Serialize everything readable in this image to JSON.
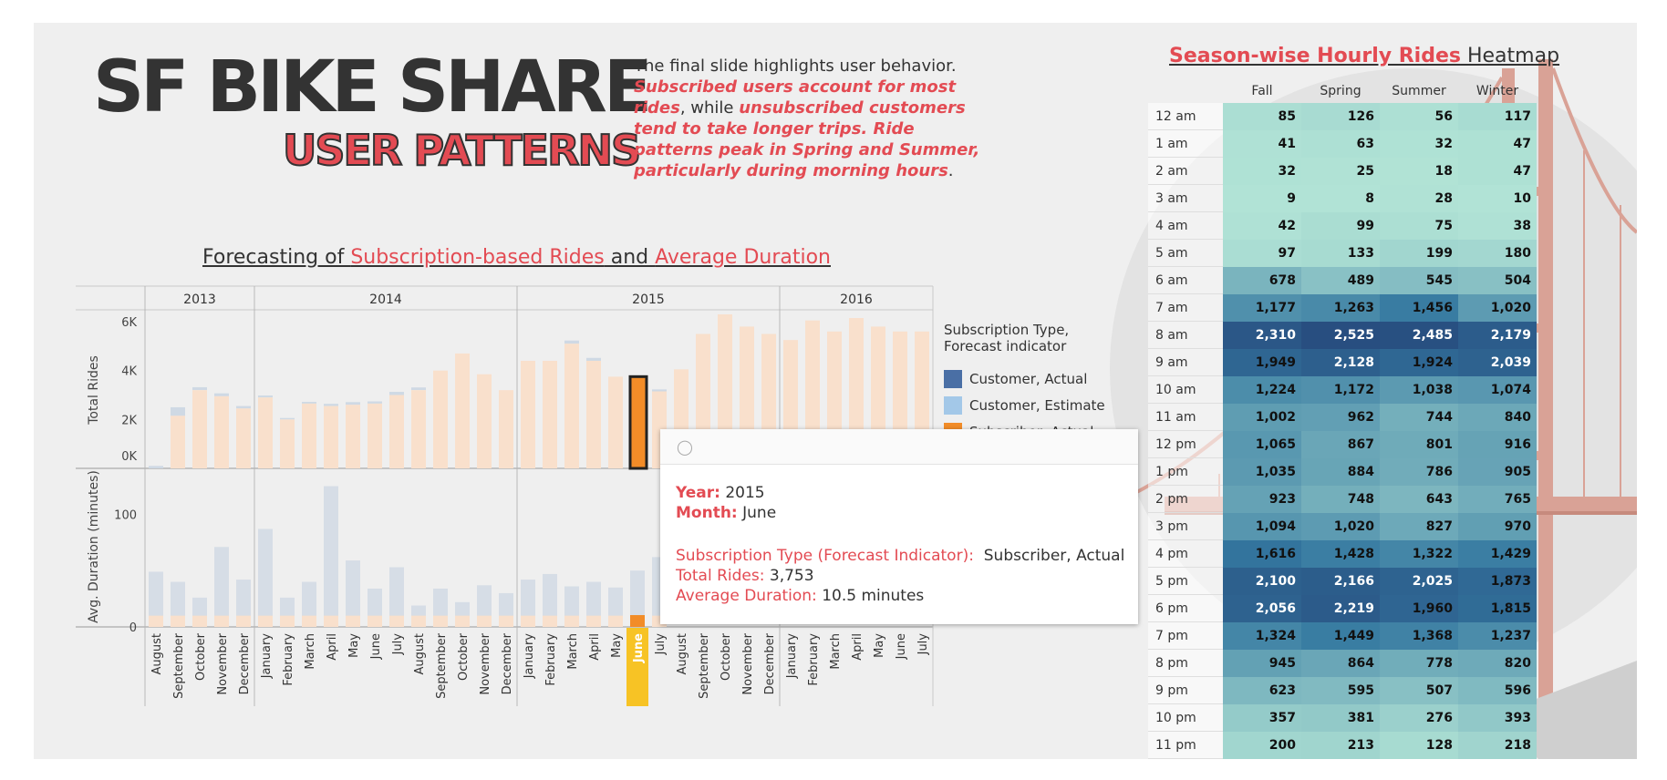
{
  "header": {
    "title_line1": "SF BIKE SHARE",
    "title_line2": "USER PATTERNS",
    "intro_plain1": "The final slide highlights user behavior.",
    "intro_red1": "Subscribed users account for most rides",
    "intro_plain2": ", while ",
    "intro_red2": "unsubscribed customers tend to take longer trips. Ride patterns peak in Spring and Summer, particularly during morning hours",
    "intro_plain3": "."
  },
  "forecast_title": {
    "p1": "Forecasting of ",
    "r1": "Subscription-based Rides",
    "p2": " and ",
    "r2": "Average Duration"
  },
  "heatmap_title": {
    "r1": "Season-wise Hourly Rides",
    "p1": " Heatmap"
  },
  "legend": {
    "title": "Subscription Type, Forecast indicator",
    "items": [
      {
        "label": "Customer, Actual",
        "color": "#4a6fa5"
      },
      {
        "label": "Customer, Estimate",
        "color": "#a3c8e8"
      },
      {
        "label": "Subscriber, Actual",
        "color": "#f28c28"
      }
    ]
  },
  "tooltip": {
    "year_label": "Year:",
    "year": "2015",
    "month_label": "Month:",
    "month": "June",
    "type_label": "Subscription Type (Forecast Indicator):",
    "type": "Subscriber, Actual",
    "rides_label": "Total Rides:",
    "rides": "3,753",
    "duration_label": "Average Duration:",
    "duration": "10.5 minutes"
  },
  "colors": {
    "accent_red": "#e34b53",
    "highlight_bar": "#f28c28",
    "highlight_month": "#f7c325"
  },
  "chart_data": {
    "type": "bar",
    "years": [
      {
        "label": "2013",
        "count": 5
      },
      {
        "label": "2014",
        "count": 12
      },
      {
        "label": "2015",
        "count": 12
      },
      {
        "label": "2016",
        "count": 7
      }
    ],
    "months": [
      "August",
      "September",
      "October",
      "November",
      "December",
      "January",
      "February",
      "March",
      "April",
      "May",
      "June",
      "July",
      "August",
      "September",
      "October",
      "November",
      "December",
      "January",
      "February",
      "March",
      "April",
      "May",
      "June",
      "July",
      "August",
      "September",
      "October",
      "November",
      "December",
      "January",
      "February",
      "March",
      "April",
      "May",
      "June",
      "July"
    ],
    "highlight_index": 22,
    "top_panel": {
      "ylabel": "Total Rides",
      "ticks": [
        "0K",
        "2K",
        "4K",
        "6K"
      ],
      "ylim": [
        0,
        6300
      ],
      "subscriber": [
        0,
        2150,
        3200,
        2950,
        2450,
        2900,
        2000,
        2650,
        2550,
        2600,
        2650,
        3000,
        3200,
        4000,
        4700,
        3850,
        3200,
        4400,
        4400,
        5100,
        4400,
        3750,
        3753,
        3150,
        4050,
        5500,
        6300,
        5800,
        5500,
        5250,
        6050,
        5600,
        6150,
        5800,
        5600,
        5600
      ],
      "customer": [
        100,
        350,
        120,
        120,
        100,
        80,
        60,
        70,
        90,
        110,
        90,
        130,
        110,
        0,
        0,
        0,
        0,
        0,
        0,
        130,
        120,
        0,
        0,
        80,
        0,
        0,
        0,
        0,
        0,
        0,
        0,
        0,
        0,
        0,
        0,
        0
      ]
    },
    "bottom_panel": {
      "ylabel": "Avg. Duration (minutes)",
      "ticks": [
        "0",
        "100"
      ],
      "ylim": [
        0,
        140
      ],
      "customer": [
        49,
        40,
        26,
        71,
        42,
        87,
        26,
        40,
        125,
        59,
        34,
        53,
        19,
        34,
        22,
        37,
        30,
        42,
        47,
        36,
        40,
        35,
        50,
        62,
        0,
        0,
        0,
        0,
        0,
        0,
        0,
        0,
        0,
        0,
        0,
        0
      ],
      "subscriber": [
        10,
        10,
        10,
        10,
        10,
        10,
        10,
        10,
        10,
        10,
        10,
        10,
        10,
        10,
        10,
        10,
        10,
        10,
        10,
        10,
        10,
        10,
        10.5,
        10,
        0,
        0,
        0,
        0,
        0,
        0,
        0,
        0,
        0,
        0,
        0,
        0
      ]
    }
  },
  "heatmap": {
    "columns": [
      "Fall",
      "Spring",
      "Summer",
      "Winter"
    ],
    "rows": [
      {
        "hour": "12 am",
        "values": [
          "85",
          "126",
          "56",
          "117"
        ]
      },
      {
        "hour": "1 am",
        "values": [
          "41",
          "63",
          "32",
          "47"
        ]
      },
      {
        "hour": "2 am",
        "values": [
          "32",
          "25",
          "18",
          "47"
        ]
      },
      {
        "hour": "3 am",
        "values": [
          "9",
          "8",
          "28",
          "10"
        ]
      },
      {
        "hour": "4 am",
        "values": [
          "42",
          "99",
          "75",
          "38"
        ]
      },
      {
        "hour": "5 am",
        "values": [
          "97",
          "133",
          "199",
          "180"
        ]
      },
      {
        "hour": "6 am",
        "values": [
          "678",
          "489",
          "545",
          "504"
        ]
      },
      {
        "hour": "7 am",
        "values": [
          "1,177",
          "1,263",
          "1,456",
          "1,020"
        ]
      },
      {
        "hour": "8 am",
        "values": [
          "2,310",
          "2,525",
          "2,485",
          "2,179"
        ]
      },
      {
        "hour": "9 am",
        "values": [
          "1,949",
          "2,128",
          "1,924",
          "2,039"
        ]
      },
      {
        "hour": "10 am",
        "values": [
          "1,224",
          "1,172",
          "1,038",
          "1,074"
        ]
      },
      {
        "hour": "11 am",
        "values": [
          "1,002",
          "962",
          "744",
          "840"
        ]
      },
      {
        "hour": "12 pm",
        "values": [
          "1,065",
          "867",
          "801",
          "916"
        ]
      },
      {
        "hour": "1 pm",
        "values": [
          "1,035",
          "884",
          "786",
          "905"
        ]
      },
      {
        "hour": "2 pm",
        "values": [
          "923",
          "748",
          "643",
          "765"
        ]
      },
      {
        "hour": "3 pm",
        "values": [
          "1,094",
          "1,020",
          "827",
          "970"
        ]
      },
      {
        "hour": "4 pm",
        "values": [
          "1,616",
          "1,428",
          "1,322",
          "1,429"
        ]
      },
      {
        "hour": "5 pm",
        "values": [
          "2,100",
          "2,166",
          "2,025",
          "1,873"
        ]
      },
      {
        "hour": "6 pm",
        "values": [
          "2,056",
          "2,219",
          "1,960",
          "1,815"
        ]
      },
      {
        "hour": "7 pm",
        "values": [
          "1,324",
          "1,449",
          "1,368",
          "1,237"
        ]
      },
      {
        "hour": "8 pm",
        "values": [
          "945",
          "864",
          "778",
          "820"
        ]
      },
      {
        "hour": "9 pm",
        "values": [
          "623",
          "595",
          "507",
          "596"
        ]
      },
      {
        "hour": "10 pm",
        "values": [
          "357",
          "381",
          "276",
          "393"
        ]
      },
      {
        "hour": "11 pm",
        "values": [
          "200",
          "213",
          "128",
          "218"
        ]
      }
    ]
  }
}
